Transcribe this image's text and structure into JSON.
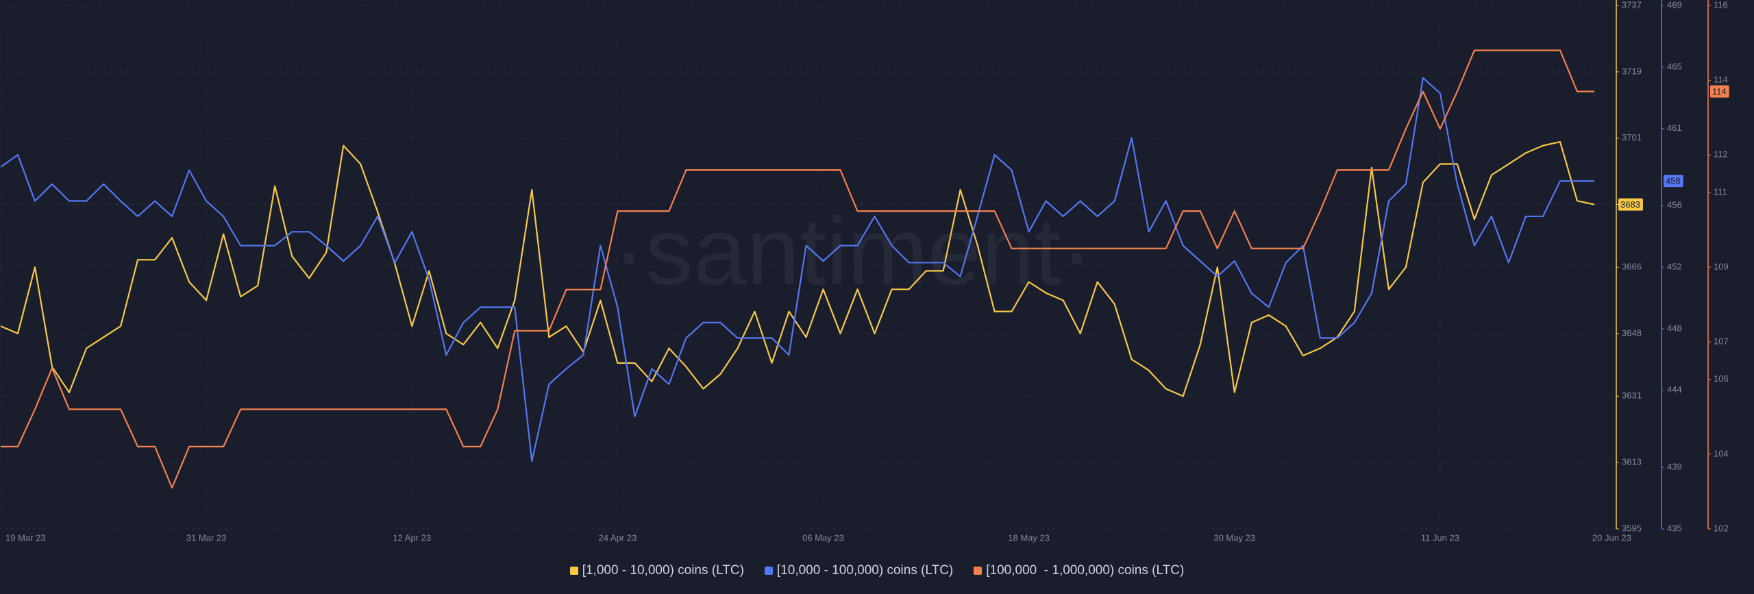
{
  "chart_data": {
    "type": "line",
    "watermark": "·santiment·",
    "grid": true,
    "legend": "bottom",
    "categories": [
      "19 Mar 23",
      null,
      null,
      null,
      null,
      null,
      null,
      null,
      null,
      null,
      null,
      null,
      "31 Mar 23",
      null,
      null,
      null,
      null,
      null,
      null,
      null,
      null,
      null,
      null,
      null,
      "12 Apr 23",
      null,
      null,
      null,
      null,
      null,
      null,
      null,
      null,
      null,
      null,
      null,
      "24 Apr 23",
      null,
      null,
      null,
      null,
      null,
      null,
      null,
      null,
      null,
      null,
      null,
      "06 May 23",
      null,
      null,
      null,
      null,
      null,
      null,
      null,
      null,
      null,
      null,
      null,
      "18 May 23",
      null,
      null,
      null,
      null,
      null,
      null,
      null,
      null,
      null,
      null,
      null,
      "30 May 23",
      null,
      null,
      null,
      null,
      null,
      null,
      null,
      null,
      null,
      null,
      null,
      "11 Jun 23",
      null,
      null,
      null,
      null,
      null,
      null,
      null,
      null,
      "20 Jun 23"
    ],
    "ylim": [
      3595,
      3737
    ],
    "yticks": [
      3737,
      3719,
      3701,
      3683,
      3666,
      3648,
      3631,
      3613,
      3595
    ],
    "y2lim": [
      435,
      469
    ],
    "y2ticks": [
      469,
      465,
      461,
      456,
      452,
      448,
      444,
      439,
      435
    ],
    "y3lim": [
      102,
      116
    ],
    "y3ticks": [
      116,
      114,
      112,
      111,
      109,
      107,
      106,
      104,
      102
    ],
    "series": [
      {
        "name": "[1,000 - 10,000) coins (LTC)",
        "color": "#f6c945",
        "axis": "y",
        "current_label": "3683",
        "values": [
          3650,
          3648,
          3666,
          3639,
          3632,
          3644,
          3647,
          3650,
          3668,
          3668,
          3674,
          3662,
          3657,
          3675,
          3658,
          3661,
          3688,
          3669,
          3663,
          3670,
          3699,
          3694,
          3681,
          3667,
          3650,
          3665,
          3648,
          3645,
          3651,
          3644,
          3657,
          3687,
          3647,
          3650,
          3643,
          3657,
          3640,
          3640,
          3635,
          3644,
          3639,
          3633,
          3637,
          3644,
          3654,
          3640,
          3654,
          3647,
          3660,
          3648,
          3660,
          3648,
          3660,
          3660,
          3665,
          3665,
          3687,
          3672,
          3654,
          3654,
          3662,
          3659,
          3657,
          3648,
          3662,
          3656,
          3641,
          3638,
          3633,
          3631,
          3645,
          3666,
          3632,
          3651,
          3653,
          3650,
          3642,
          3644,
          3647,
          3654,
          3693,
          3660,
          3666,
          3689,
          3694,
          3694,
          3679,
          3691,
          3694,
          3697,
          3699,
          3700,
          3684,
          3683
        ]
      },
      {
        "name": "[10,000 - 100,000) coins (LTC)",
        "color": "#5577f2",
        "axis": "y2",
        "current_label": "458",
        "values": [
          458.5,
          459.3,
          456.3,
          457.4,
          456.3,
          456.3,
          457.4,
          456.3,
          455.3,
          456.3,
          455.3,
          458.3,
          456.3,
          455.3,
          453.4,
          453.4,
          453.4,
          454.3,
          454.3,
          453.4,
          452.4,
          453.4,
          455.3,
          452.3,
          454.3,
          451.2,
          446.3,
          448.4,
          449.4,
          449.4,
          449.4,
          439.4,
          444.4,
          445.4,
          446.3,
          453.4,
          449.4,
          442.3,
          445.4,
          444.4,
          447.4,
          448.4,
          448.4,
          447.4,
          447.4,
          447.4,
          446.3,
          453.4,
          452.4,
          453.4,
          453.4,
          455.3,
          453.4,
          452.3,
          452.3,
          452.3,
          451.4,
          455.3,
          459.3,
          458.3,
          454.3,
          456.3,
          455.3,
          456.3,
          455.3,
          456.3,
          460.4,
          454.3,
          456.3,
          453.4,
          452.4,
          451.4,
          452.4,
          450.3,
          449.4,
          452.3,
          453.4,
          447.4,
          447.4,
          448.4,
          450.3,
          456.3,
          457.4,
          464.3,
          463.3,
          457.4,
          453.4,
          455.3,
          452.3,
          455.3,
          455.3,
          457.6,
          457.6,
          457.6
        ]
      },
      {
        "name": "[100,000  - 1,000,000) coins (LTC)",
        "color": "#f4814f",
        "axis": "y3",
        "current_label": "114",
        "values": [
          104.2,
          104.2,
          105.2,
          106.3,
          105.2,
          105.2,
          105.2,
          105.2,
          104.2,
          104.2,
          103.1,
          104.2,
          104.2,
          104.2,
          105.2,
          105.2,
          105.2,
          105.2,
          105.2,
          105.2,
          105.2,
          105.2,
          105.2,
          105.2,
          105.2,
          105.2,
          105.2,
          104.2,
          104.2,
          105.2,
          107.3,
          107.3,
          107.3,
          108.4,
          108.4,
          108.4,
          110.5,
          110.5,
          110.5,
          110.5,
          111.6,
          111.6,
          111.6,
          111.6,
          111.6,
          111.6,
          111.6,
          111.6,
          111.6,
          111.6,
          110.5,
          110.5,
          110.5,
          110.5,
          110.5,
          110.5,
          110.5,
          110.5,
          110.5,
          109.5,
          109.5,
          109.5,
          109.5,
          109.5,
          109.5,
          109.5,
          109.5,
          109.5,
          109.5,
          110.5,
          110.5,
          109.5,
          110.5,
          109.5,
          109.5,
          109.5,
          109.5,
          110.5,
          111.6,
          111.6,
          111.6,
          111.6,
          112.7,
          113.7,
          112.7,
          113.7,
          114.8,
          114.8,
          114.8,
          114.8,
          114.8,
          114.8,
          113.7,
          113.7
        ]
      }
    ]
  }
}
